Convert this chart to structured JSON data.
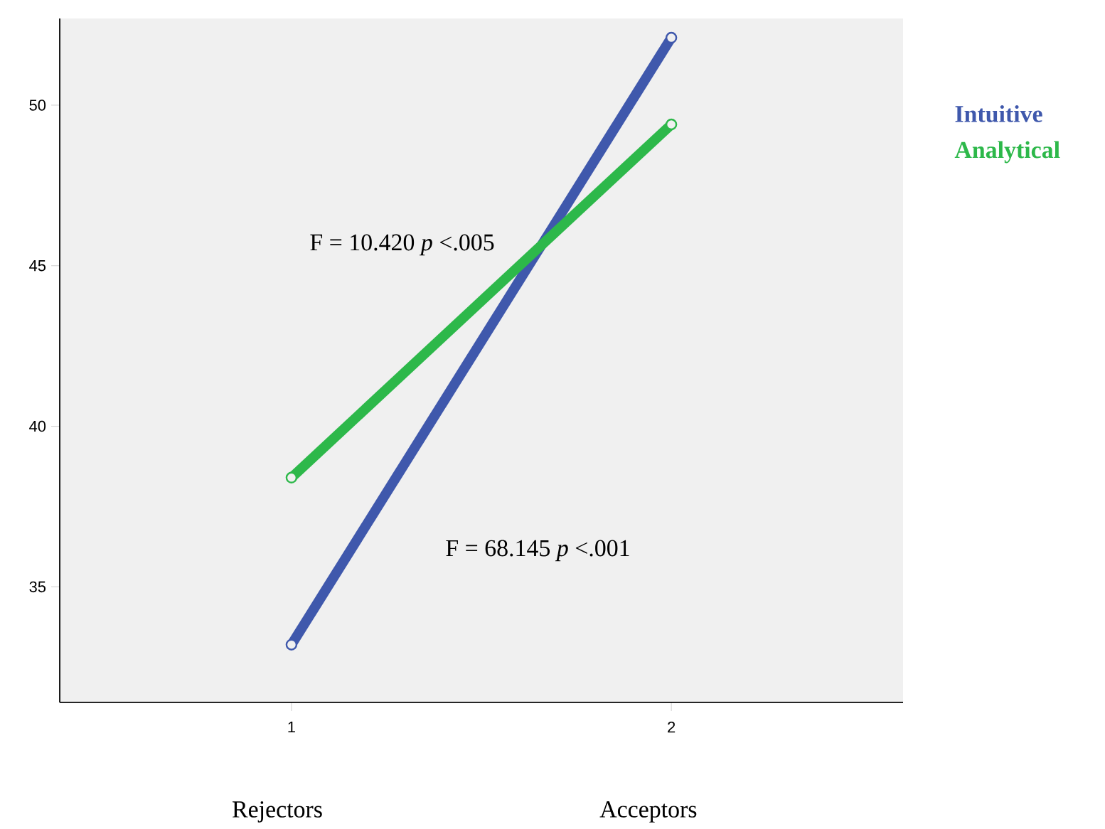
{
  "chart_data": {
    "type": "line",
    "x": [
      1,
      2
    ],
    "series": [
      {
        "name": "Intuitive",
        "color": "#3f58ac",
        "values": [
          33.2,
          52.1
        ]
      },
      {
        "name": "Analytical",
        "color": "#2db84a",
        "values": [
          38.4,
          49.4
        ]
      }
    ],
    "xlim": [
      0.39,
      2.61
    ],
    "ylim": [
      31.4,
      52.7
    ],
    "xticks": [
      1,
      2
    ],
    "yticks": [
      35,
      40,
      45,
      50
    ],
    "marker": "circle",
    "line_style": "solid",
    "grid": false,
    "legend": "top right",
    "annotations": [
      "F = 10.420 *p* <.005",
      "F = 68.145 *p* <.001",
      "Rejectors",
      "Acceptors"
    ]
  }
}
